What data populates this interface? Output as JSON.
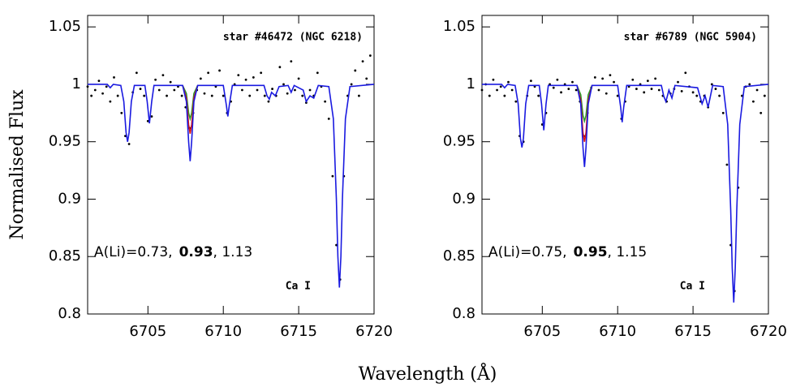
{
  "axis_labels": {
    "y": "Normalised Flux",
    "x": "Wavelength (Å)"
  },
  "chart_data": [
    {
      "type": "spectrum",
      "title": "star #46472 (NGC 6218)",
      "annotation": {
        "prefix": "A(Li)=0.73,",
        "bold": "0.93",
        "suffix": ", 1.13"
      },
      "line_label": "Ca I",
      "xlim": [
        6701,
        6720
      ],
      "ylim": [
        0.8,
        1.06
      ],
      "xticks": [
        6705,
        6710,
        6715,
        6720
      ],
      "yticks": [
        0.8,
        0.85,
        0.9,
        0.95,
        1,
        1.05
      ],
      "observed": {
        "color": "#000000",
        "x": [
          6701,
          6701.25,
          6701.5,
          6701.75,
          6702,
          6702.25,
          6702.5,
          6702.75,
          6703,
          6703.25,
          6703.5,
          6703.75,
          6704,
          6704.25,
          6704.5,
          6704.75,
          6705,
          6705.25,
          6705.5,
          6705.75,
          6706,
          6706.25,
          6706.5,
          6706.75,
          6707,
          6707.25,
          6707.5,
          6707.75,
          6708,
          6708.25,
          6708.5,
          6708.75,
          6709,
          6709.25,
          6709.5,
          6709.75,
          6710,
          6710.25,
          6710.5,
          6710.75,
          6711,
          6711.25,
          6711.5,
          6711.75,
          6712,
          6712.25,
          6712.5,
          6712.75,
          6713,
          6713.25,
          6713.5,
          6713.75,
          6714,
          6714.25,
          6714.5,
          6714.75,
          6715,
          6715.25,
          6715.5,
          6715.75,
          6716,
          6716.25,
          6716.5,
          6716.75,
          6717,
          6717.25,
          6717.5,
          6717.75,
          6718,
          6718.25,
          6718.5,
          6718.75,
          6719,
          6719.25,
          6719.5,
          6719.75
        ],
        "y": [
          0.998,
          0.99,
          0.995,
          1.003,
          0.992,
          0.998,
          0.985,
          1.006,
          0.99,
          0.975,
          0.955,
          0.948,
          0.993,
          1.01,
          0.996,
          0.99,
          0.968,
          0.972,
          1.004,
          0.995,
          1.008,
          0.99,
          1.002,
          0.995,
          0.998,
          0.99,
          0.98,
          0.962,
          0.975,
          0.995,
          1.005,
          0.992,
          1.01,
          0.99,
          0.998,
          1.012,
          0.99,
          0.975,
          0.985,
          1.0,
          1.008,
          0.995,
          1.004,
          0.99,
          1.006,
          0.995,
          1.01,
          0.99,
          0.985,
          0.996,
          0.99,
          1.015,
          1.0,
          0.992,
          1.02,
          0.995,
          1.005,
          0.99,
          0.984,
          0.995,
          0.99,
          1.01,
          0.998,
          0.985,
          0.97,
          0.92,
          0.86,
          0.83,
          0.92,
          0.99,
          1.0,
          1.012,
          0.99,
          1.02,
          1.005,
          1.025
        ]
      },
      "models": [
        {
          "color": "#2a9a2a",
          "x": [
            6707.3,
            6707.55,
            6707.7,
            6707.8,
            6707.9,
            6708.05,
            6708.3
          ],
          "y": [
            0.999,
            0.992,
            0.975,
            0.97,
            0.975,
            0.992,
            0.999
          ]
        },
        {
          "color": "#dd1111",
          "x": [
            6707.3,
            6707.55,
            6707.7,
            6707.8,
            6707.9,
            6708.05,
            6708.3
          ],
          "y": [
            0.999,
            0.988,
            0.965,
            0.957,
            0.965,
            0.988,
            0.999
          ]
        },
        {
          "color": "#1a1ae0",
          "x": [
            6701,
            6702.3,
            6702.5,
            6702.7,
            6703.2,
            6703.4,
            6703.55,
            6703.65,
            6703.75,
            6703.9,
            6704.1,
            6704.8,
            6704.95,
            6705.1,
            6705.25,
            6705.4,
            6707.3,
            6707.55,
            6707.7,
            6707.8,
            6707.9,
            6708.05,
            6708.3,
            6710,
            6710.2,
            6710.3,
            6710.4,
            6710.6,
            6712.7,
            6712.9,
            6713.05,
            6713.2,
            6713.45,
            6713.7,
            6714.3,
            6714.5,
            6714.7,
            6715.3,
            6715.5,
            6715.75,
            6716,
            6716.3,
            6717,
            6717.3,
            6717.5,
            6717.6,
            6717.7,
            6717.8,
            6717.9,
            6718.1,
            6718.4,
            6720
          ],
          "y": [
            1.0,
            1.0,
            0.997,
            1.0,
            0.999,
            0.985,
            0.958,
            0.95,
            0.958,
            0.985,
            0.999,
            0.999,
            0.985,
            0.966,
            0.985,
            0.999,
            0.999,
            0.985,
            0.95,
            0.933,
            0.95,
            0.985,
            0.999,
            0.999,
            0.982,
            0.972,
            0.982,
            0.999,
            0.999,
            0.99,
            0.987,
            0.993,
            0.99,
            0.998,
            0.999,
            0.993,
            0.999,
            0.995,
            0.985,
            0.99,
            0.988,
            0.999,
            0.998,
            0.97,
            0.9,
            0.85,
            0.823,
            0.85,
            0.9,
            0.97,
            0.998,
            1.0
          ]
        }
      ]
    },
    {
      "type": "spectrum",
      "title": "star #6789 (NGC 5904)",
      "annotation": {
        "prefix": "A(Li)=0.75,",
        "bold": "0.95",
        "suffix": ", 1.15"
      },
      "line_label": "Ca I",
      "xlim": [
        6701,
        6720
      ],
      "ylim": [
        0.8,
        1.06
      ],
      "xticks": [
        6705,
        6710,
        6715,
        6720
      ],
      "yticks": [
        0.8,
        0.85,
        0.9,
        0.95,
        1,
        1.05
      ],
      "observed": {
        "color": "#000000",
        "x": [
          6701,
          6701.25,
          6701.5,
          6701.75,
          6702,
          6702.25,
          6702.5,
          6702.75,
          6703,
          6703.25,
          6703.5,
          6703.75,
          6704,
          6704.25,
          6704.5,
          6704.75,
          6705,
          6705.25,
          6705.5,
          6705.75,
          6706,
          6706.25,
          6706.5,
          6706.75,
          6707,
          6707.25,
          6707.5,
          6707.75,
          6708,
          6708.25,
          6708.5,
          6708.75,
          6709,
          6709.25,
          6709.5,
          6709.75,
          6710,
          6710.25,
          6710.5,
          6710.75,
          6711,
          6711.25,
          6711.5,
          6711.75,
          6712,
          6712.25,
          6712.5,
          6712.75,
          6713,
          6713.25,
          6713.5,
          6713.75,
          6714,
          6714.25,
          6714.5,
          6714.75,
          6715,
          6715.25,
          6715.5,
          6715.75,
          6716,
          6716.25,
          6716.5,
          6716.75,
          6717,
          6717.25,
          6717.5,
          6717.75,
          6718,
          6718.25,
          6718.5,
          6718.75,
          6719,
          6719.25,
          6719.5,
          6719.75
        ],
        "y": [
          0.995,
          1.0,
          0.99,
          1.004,
          0.995,
          0.998,
          0.99,
          1.002,
          0.995,
          0.985,
          0.955,
          0.95,
          0.99,
          1.003,
          0.998,
          0.99,
          0.965,
          0.975,
          1.0,
          0.997,
          1.004,
          0.993,
          1.0,
          0.996,
          1.002,
          0.995,
          0.985,
          0.955,
          0.975,
          0.997,
          1.006,
          0.995,
          1.005,
          0.992,
          1.008,
          1.002,
          0.99,
          0.97,
          0.985,
          0.998,
          1.004,
          0.996,
          1.0,
          0.993,
          1.003,
          0.996,
          1.005,
          0.995,
          0.99,
          0.985,
          0.992,
          0.996,
          1.002,
          0.994,
          1.01,
          0.998,
          0.993,
          0.99,
          0.985,
          0.99,
          0.98,
          1.0,
          0.996,
          0.99,
          0.975,
          0.93,
          0.86,
          0.82,
          0.91,
          0.99,
          0.998,
          1.0,
          0.985,
          0.995,
          0.975,
          0.99
        ]
      },
      "models": [
        {
          "color": "#2a9a2a",
          "x": [
            6707.3,
            6707.55,
            6707.7,
            6707.8,
            6707.9,
            6708.05,
            6708.3
          ],
          "y": [
            0.999,
            0.991,
            0.973,
            0.968,
            0.973,
            0.991,
            0.999
          ]
        },
        {
          "color": "#dd1111",
          "x": [
            6707.3,
            6707.55,
            6707.7,
            6707.8,
            6707.9,
            6708.05,
            6708.3
          ],
          "y": [
            0.999,
            0.986,
            0.958,
            0.95,
            0.958,
            0.986,
            0.999
          ]
        },
        {
          "color": "#1a1ae0",
          "x": [
            6701,
            6702.3,
            6702.5,
            6702.7,
            6703.2,
            6703.4,
            6703.55,
            6703.65,
            6703.75,
            6703.9,
            6704.1,
            6704.8,
            6704.95,
            6705.1,
            6705.25,
            6705.4,
            6707.3,
            6707.55,
            6707.7,
            6707.8,
            6707.9,
            6708.05,
            6708.3,
            6710,
            6710.2,
            6710.3,
            6710.4,
            6710.6,
            6712.9,
            6713.05,
            6713.2,
            6713.4,
            6713.6,
            6713.8,
            6715.3,
            6715.6,
            6715.8,
            6716,
            6716.3,
            6717,
            6717.3,
            6717.5,
            6717.6,
            6717.7,
            6717.8,
            6717.9,
            6718.1,
            6718.4,
            6720
          ],
          "y": [
            1.0,
            1.0,
            0.997,
            1.0,
            0.999,
            0.983,
            0.953,
            0.945,
            0.953,
            0.983,
            0.999,
            0.999,
            0.983,
            0.96,
            0.983,
            0.999,
            0.999,
            0.983,
            0.945,
            0.928,
            0.945,
            0.983,
            0.999,
            0.999,
            0.98,
            0.967,
            0.98,
            0.999,
            0.999,
            0.99,
            0.985,
            0.995,
            0.988,
            0.999,
            0.997,
            0.983,
            0.99,
            0.98,
            0.999,
            0.998,
            0.965,
            0.89,
            0.84,
            0.81,
            0.84,
            0.89,
            0.965,
            0.998,
            1.0
          ]
        }
      ]
    }
  ]
}
